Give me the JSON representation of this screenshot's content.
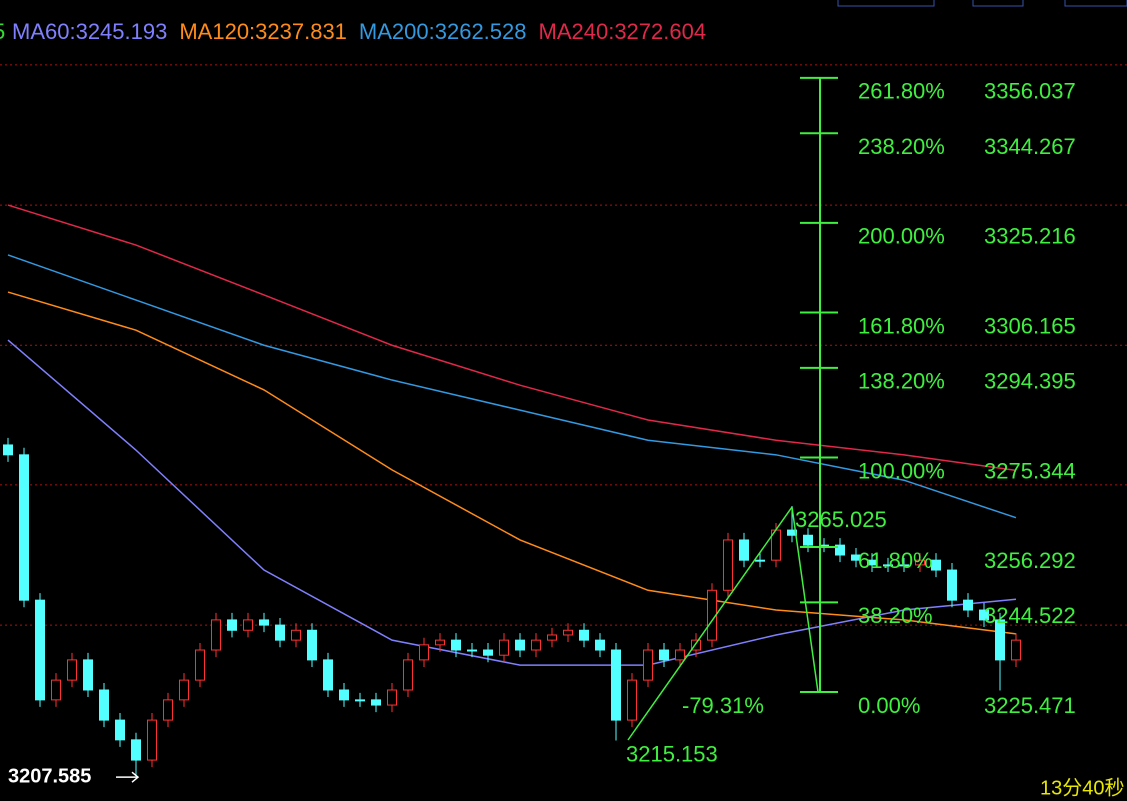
{
  "chart_data": {
    "type": "candlestick",
    "legend_fragment": "5",
    "legend_fragment_color": "#33dd33",
    "ylim": [
      3202.3,
      3372.6
    ],
    "grid_lines": [
      3358.8,
      3329.0,
      3299.2,
      3269.5,
      3239.7
    ],
    "grid_color": "#b01010",
    "up_color": "#ff3232",
    "down_color": "#54ffff",
    "open": [
      3278.0,
      3275.9,
      3245.0,
      3223.8,
      3228.0,
      3232.3,
      3225.9,
      3219.5,
      3215.3,
      3211.0,
      3219.5,
      3223.8,
      3228.0,
      3234.4,
      3240.8,
      3238.6,
      3240.8,
      3239.7,
      3236.5,
      3238.6,
      3232.3,
      3225.9,
      3223.8,
      3223.8,
      3222.7,
      3225.9,
      3232.3,
      3235.5,
      3236.5,
      3234.4,
      3234.4,
      3233.3,
      3236.5,
      3234.4,
      3236.5,
      3237.6,
      3238.6,
      3236.5,
      3234.4,
      3219.5,
      3228.0,
      3234.4,
      3232.3,
      3234.4,
      3236.5,
      3247.1,
      3257.8,
      3253.5,
      3253.5,
      3259.9,
      3258.8,
      3256.7,
      3256.7,
      3254.6,
      3253.5,
      3252.5,
      3252.5,
      3252.5,
      3253.5,
      3251.4,
      3245.0,
      3242.9,
      3240.8,
      3232.3
    ],
    "close": [
      3275.9,
      3245.0,
      3223.8,
      3228.0,
      3232.3,
      3225.9,
      3219.5,
      3215.3,
      3211.0,
      3219.5,
      3223.8,
      3228.0,
      3234.4,
      3240.8,
      3238.6,
      3240.8,
      3239.7,
      3236.5,
      3238.6,
      3232.3,
      3225.9,
      3223.8,
      3223.8,
      3222.7,
      3225.9,
      3232.3,
      3235.5,
      3236.5,
      3234.4,
      3234.4,
      3233.3,
      3236.5,
      3234.4,
      3236.5,
      3237.6,
      3238.6,
      3236.5,
      3234.4,
      3219.5,
      3228.0,
      3234.4,
      3232.3,
      3234.4,
      3236.5,
      3247.1,
      3257.8,
      3253.5,
      3253.5,
      3259.9,
      3258.8,
      3256.7,
      3256.7,
      3254.6,
      3253.5,
      3252.5,
      3252.5,
      3252.5,
      3253.5,
      3251.4,
      3245.0,
      3242.9,
      3240.8,
      3232.3,
      3236.5
    ],
    "high": [
      3279.5,
      3277.4,
      3246.5,
      3229.5,
      3233.8,
      3233.8,
      3227.4,
      3221.0,
      3216.8,
      3221.0,
      3225.3,
      3229.5,
      3235.9,
      3242.3,
      3242.3,
      3242.3,
      3242.3,
      3241.2,
      3240.1,
      3240.1,
      3233.8,
      3227.4,
      3225.3,
      3225.3,
      3227.4,
      3233.8,
      3237.0,
      3238.0,
      3238.0,
      3235.9,
      3235.9,
      3238.0,
      3238.0,
      3238.0,
      3239.1,
      3240.1,
      3240.1,
      3238.0,
      3235.9,
      3229.5,
      3235.9,
      3235.9,
      3235.9,
      3238.0,
      3248.6,
      3259.3,
      3259.3,
      3255.0,
      3261.4,
      3265.025,
      3260.3,
      3258.2,
      3258.2,
      3256.1,
      3255.0,
      3254.0,
      3254.0,
      3255.0,
      3255.0,
      3252.9,
      3246.5,
      3244.4,
      3242.3,
      3238.0
    ],
    "low": [
      3274.4,
      3243.5,
      3222.3,
      3222.3,
      3226.5,
      3224.4,
      3218.0,
      3213.8,
      3207.585,
      3209.5,
      3218.0,
      3222.3,
      3226.5,
      3232.9,
      3237.1,
      3237.1,
      3238.2,
      3235.0,
      3235.0,
      3230.8,
      3224.4,
      3222.3,
      3222.3,
      3221.2,
      3221.2,
      3224.4,
      3230.8,
      3234.0,
      3232.9,
      3232.9,
      3231.8,
      3231.8,
      3232.9,
      3232.9,
      3235.0,
      3236.1,
      3235.0,
      3232.9,
      3215.153,
      3218.0,
      3226.5,
      3230.8,
      3230.8,
      3232.9,
      3235.0,
      3245.6,
      3252.0,
      3252.0,
      3252.0,
      3257.3,
      3255.2,
      3255.2,
      3253.1,
      3252.0,
      3251.0,
      3251.0,
      3251.0,
      3251.0,
      3249.9,
      3243.5,
      3241.4,
      3239.3,
      3225.8,
      3230.8
    ],
    "series": [
      {
        "name": "MA60:3245.193",
        "color": "#8080ff",
        "x": [
          0,
          8,
          16,
          24,
          32,
          40,
          48,
          56,
          63
        ],
        "values": [
          3300.3,
          3276.9,
          3251.4,
          3236.5,
          3231.2,
          3231.2,
          3237.6,
          3242.9,
          3245.193
        ]
      },
      {
        "name": "MA120:3237.831",
        "color": "#ff8c1a",
        "x": [
          0,
          8,
          16,
          24,
          32,
          40,
          48,
          56,
          63
        ],
        "values": [
          3310.5,
          3302.4,
          3289.7,
          3272.7,
          3257.8,
          3247.1,
          3242.9,
          3240.8,
          3237.831
        ]
      },
      {
        "name": "MA200:3262.528",
        "color": "#3399e0",
        "x": [
          0,
          8,
          16,
          24,
          32,
          40,
          48,
          56,
          63
        ],
        "values": [
          3318.4,
          3308.8,
          3299.2,
          3291.8,
          3285.4,
          3279.0,
          3275.9,
          3270.5,
          3262.528
        ]
      },
      {
        "name": "MA240:3272.604",
        "color": "#e0284a",
        "x": [
          0,
          8,
          16,
          24,
          32,
          40,
          48,
          56,
          63
        ],
        "values": [
          3329.0,
          3320.5,
          3309.9,
          3299.2,
          3290.7,
          3283.3,
          3279.0,
          3275.9,
          3272.604
        ]
      }
    ],
    "fibonacci": {
      "color": "#40f040",
      "levels": [
        {
          "label": "261.80%",
          "value": 3356.037
        },
        {
          "label": "238.20%",
          "value": 3344.267
        },
        {
          "label": "200.00%",
          "value": 3325.216
        },
        {
          "label": "161.80%",
          "value": 3306.165
        },
        {
          "label": "138.20%",
          "value": 3294.395
        },
        {
          "label": "100.00%",
          "value": 3275.344
        },
        {
          "label": "61.80%",
          "value": 3256.292
        },
        {
          "label": "38.20%",
          "value": 3244.522
        },
        {
          "label": "0.00%",
          "value": 3225.471
        }
      ],
      "extension_label": "-79.31%"
    },
    "countdown": "13分40秒"
  }
}
